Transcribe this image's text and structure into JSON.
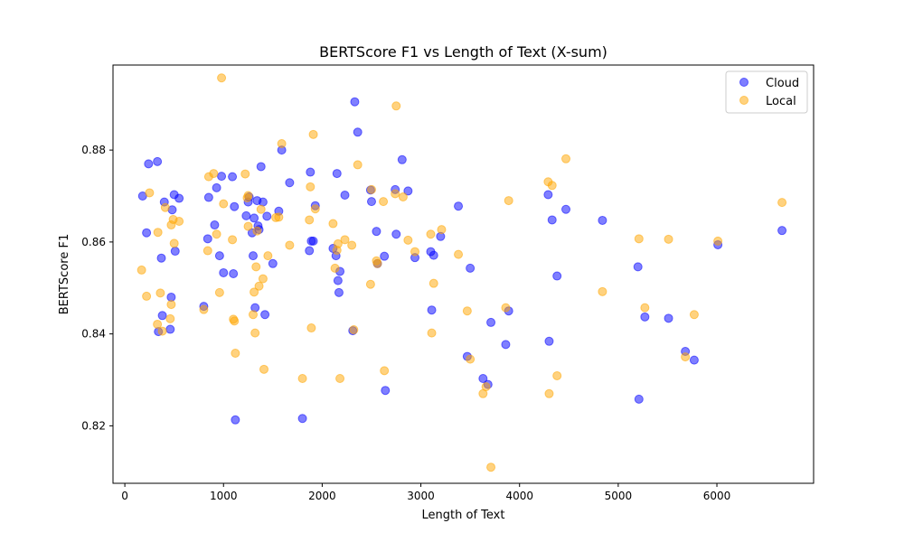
{
  "chart_data": {
    "type": "scatter",
    "title": "BERTScore F1 vs Length of Text (X-sum)",
    "xlabel": "Length of Text",
    "ylabel": "BERTScore F1",
    "xlim": [
      -120,
      6980
    ],
    "ylim": [
      0.8075,
      0.8985
    ],
    "xticks": [
      0,
      1000,
      2000,
      3000,
      4000,
      5000,
      6000
    ],
    "yticks": [
      0.82,
      0.84,
      0.86,
      0.88
    ],
    "grid": false,
    "legend_position": "top-right",
    "series": [
      {
        "name": "Cloud",
        "color": "#0000ff",
        "x": [
          180,
          220,
          240,
          330,
          340,
          370,
          380,
          400,
          460,
          470,
          480,
          500,
          510,
          550,
          800,
          840,
          850,
          910,
          930,
          960,
          980,
          1000,
          1090,
          1100,
          1110,
          1120,
          1230,
          1250,
          1260,
          1290,
          1300,
          1310,
          1320,
          1340,
          1350,
          1360,
          1380,
          1400,
          1420,
          1440,
          1500,
          1560,
          1590,
          1670,
          1800,
          1870,
          1880,
          1890,
          1910,
          1930,
          2110,
          2140,
          2150,
          2160,
          2170,
          2180,
          2230,
          2310,
          2330,
          2360,
          2490,
          2500,
          2550,
          2560,
          2630,
          2640,
          2740,
          2750,
          2810,
          2870,
          2940,
          3100,
          3110,
          3130,
          3200,
          3380,
          3470,
          3500,
          3630,
          3680,
          3710,
          3860,
          3890,
          4290,
          4300,
          4330,
          4380,
          4470,
          4840,
          5200,
          5210,
          5270,
          5510,
          5680,
          5770,
          6010,
          6660
        ],
        "y": [
          0.87,
          0.862,
          0.877,
          0.8775,
          0.8405,
          0.8565,
          0.844,
          0.8687,
          0.841,
          0.848,
          0.867,
          0.8703,
          0.858,
          0.8695,
          0.846,
          0.8607,
          0.8697,
          0.8637,
          0.8718,
          0.857,
          0.8743,
          0.8533,
          0.8742,
          0.8531,
          0.8677,
          0.8213,
          0.8657,
          0.8687,
          0.8698,
          0.862,
          0.857,
          0.8652,
          0.8457,
          0.869,
          0.8635,
          0.8627,
          0.8764,
          0.8687,
          0.8442,
          0.8656,
          0.8553,
          0.8667,
          0.88,
          0.8729,
          0.8216,
          0.8581,
          0.8752,
          0.8602,
          0.8602,
          0.8679,
          0.8586,
          0.857,
          0.8749,
          0.8516,
          0.849,
          0.8536,
          0.8702,
          0.8407,
          0.8905,
          0.8839,
          0.8713,
          0.8688,
          0.8623,
          0.8553,
          0.8569,
          0.8277,
          0.8714,
          0.8617,
          0.8779,
          0.8711,
          0.8566,
          0.8579,
          0.8452,
          0.8571,
          0.8612,
          0.8678,
          0.8351,
          0.8543,
          0.8303,
          0.829,
          0.8425,
          0.8377,
          0.845,
          0.8703,
          0.8384,
          0.8648,
          0.8526,
          0.8671,
          0.8647,
          0.8546,
          0.8258,
          0.8437,
          0.8434,
          0.8362,
          0.8343,
          0.8594,
          0.8625
        ]
      },
      {
        "name": "Local",
        "color": "#ffa500",
        "x": [
          170,
          220,
          250,
          330,
          335,
          360,
          380,
          410,
          460,
          470,
          470,
          490,
          500,
          550,
          800,
          840,
          850,
          900,
          930,
          960,
          980,
          1000,
          1090,
          1100,
          1110,
          1120,
          1220,
          1240,
          1250,
          1250,
          1300,
          1310,
          1320,
          1330,
          1340,
          1360,
          1380,
          1400,
          1410,
          1450,
          1530,
          1560,
          1590,
          1670,
          1800,
          1870,
          1880,
          1890,
          1910,
          1930,
          2110,
          2130,
          2150,
          2160,
          2180,
          2230,
          2300,
          2320,
          2360,
          2490,
          2500,
          2550,
          2560,
          2620,
          2630,
          2740,
          2750,
          2820,
          2870,
          2940,
          3100,
          3110,
          3130,
          3210,
          3380,
          3470,
          3500,
          3630,
          3660,
          3710,
          3860,
          3890,
          4290,
          4300,
          4330,
          4380,
          4470,
          4840,
          5210,
          5270,
          5510,
          5680,
          5770,
          6010,
          6660
        ],
        "y": [
          0.8539,
          0.8482,
          0.8707,
          0.8421,
          0.8621,
          0.8489,
          0.8406,
          0.8675,
          0.8433,
          0.8637,
          0.8464,
          0.8649,
          0.8597,
          0.8645,
          0.8453,
          0.8581,
          0.8742,
          0.8749,
          0.8617,
          0.849,
          0.8957,
          0.8683,
          0.8605,
          0.8432,
          0.8428,
          0.8358,
          0.8748,
          0.8696,
          0.8701,
          0.8634,
          0.8442,
          0.8491,
          0.8402,
          0.8546,
          0.8624,
          0.8504,
          0.8671,
          0.852,
          0.8323,
          0.857,
          0.8653,
          0.8654,
          0.8814,
          0.8593,
          0.8303,
          0.8648,
          0.872,
          0.8413,
          0.8834,
          0.8672,
          0.864,
          0.8543,
          0.8582,
          0.8596,
          0.8303,
          0.8605,
          0.8593,
          0.8409,
          0.8768,
          0.8508,
          0.8714,
          0.8559,
          0.8553,
          0.8688,
          0.832,
          0.8705,
          0.8896,
          0.8698,
          0.8604,
          0.8579,
          0.8617,
          0.8402,
          0.851,
          0.8627,
          0.8573,
          0.845,
          0.8345,
          0.827,
          0.8285,
          0.811,
          0.8457,
          0.869,
          0.8731,
          0.827,
          0.8723,
          0.8309,
          0.8781,
          0.8492,
          0.8607,
          0.8457,
          0.8606,
          0.835,
          0.8442,
          0.8602,
          0.8686
        ]
      }
    ]
  }
}
